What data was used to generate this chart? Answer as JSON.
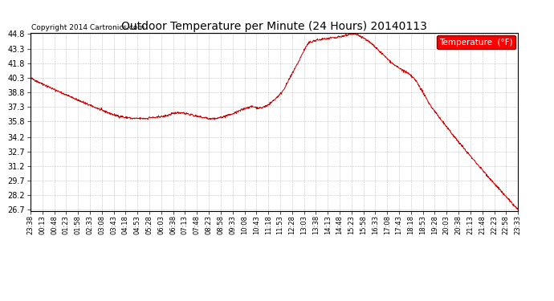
{
  "title": "Outdoor Temperature per Minute (24 Hours) 20140113",
  "copyright": "Copyright 2014 Cartronics.com",
  "legend_label": "Temperature  (°F)",
  "line_color": "#cc0000",
  "background_color": "#ffffff",
  "grid_color": "#999999",
  "ylim": [
    26.7,
    44.8
  ],
  "yticks": [
    26.7,
    28.2,
    29.7,
    31.2,
    32.7,
    34.2,
    35.8,
    37.3,
    38.8,
    40.3,
    41.8,
    43.3,
    44.8
  ],
  "xtick_labels": [
    "23:38",
    "00:13",
    "00:48",
    "01:23",
    "01:58",
    "02:33",
    "03:08",
    "03:43",
    "04:18",
    "04:53",
    "05:28",
    "06:03",
    "06:38",
    "07:13",
    "07:48",
    "08:23",
    "08:58",
    "09:33",
    "10:08",
    "10:43",
    "11:18",
    "11:53",
    "12:28",
    "13:03",
    "13:38",
    "14:13",
    "14:48",
    "15:23",
    "15:58",
    "16:33",
    "17:08",
    "17:43",
    "18:18",
    "18:53",
    "19:28",
    "20:03",
    "20:38",
    "21:13",
    "21:48",
    "22:23",
    "22:58",
    "23:33"
  ],
  "n_points": 1440,
  "key_times": [
    0.0,
    0.019,
    0.075,
    0.135,
    0.185,
    0.22,
    0.27,
    0.305,
    0.345,
    0.375,
    0.41,
    0.455,
    0.47,
    0.51,
    0.545,
    0.575,
    0.635,
    0.66,
    0.75,
    0.785,
    0.82,
    0.87,
    0.92,
    1.0
  ],
  "key_temps": [
    40.3,
    39.8,
    38.5,
    37.2,
    36.3,
    36.1,
    36.3,
    36.7,
    36.3,
    36.1,
    36.5,
    37.3,
    37.2,
    38.5,
    41.5,
    44.0,
    44.5,
    44.8,
    41.5,
    40.3,
    37.5,
    34.2,
    31.2,
    26.7
  ]
}
